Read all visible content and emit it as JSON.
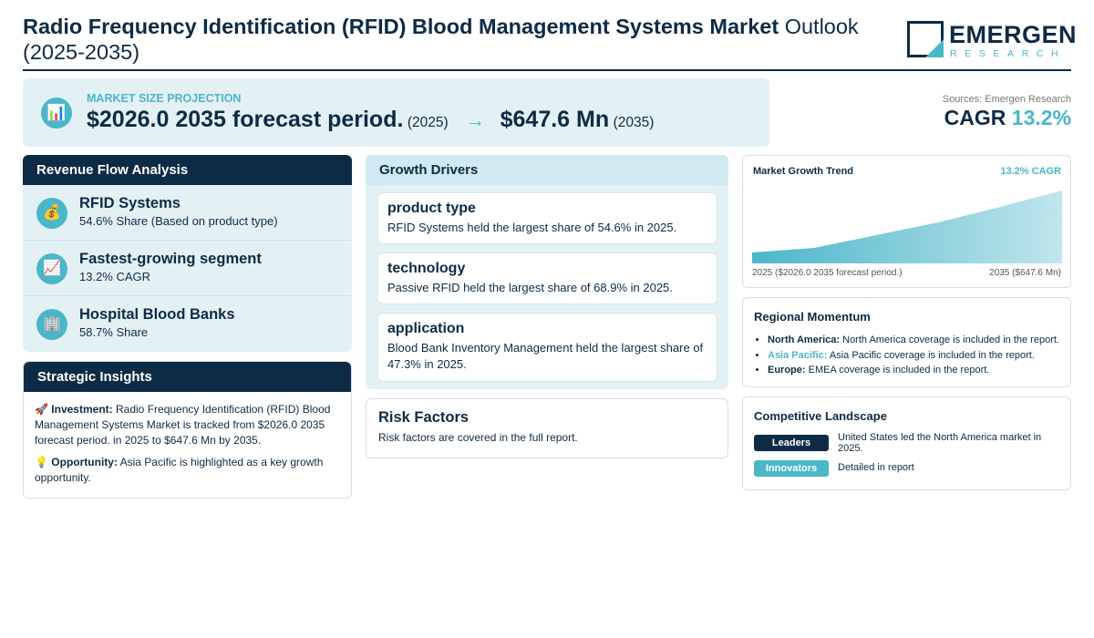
{
  "header": {
    "title_bold": "Radio Frequency Identification (RFID) Blood Management Systems Market",
    "title_rest": "Outlook (2025-2035)",
    "logo_name": "EMERGEN",
    "logo_sub": "RESEARCH"
  },
  "projection": {
    "label": "MARKET SIZE PROJECTION",
    "start_value": "$2026.0 2035 forecast period.",
    "start_year": "(2025)",
    "arrow": "→",
    "end_value": "$647.6 Mn",
    "end_year": "(2035)",
    "icon": "bar-chart-icon"
  },
  "sources": "Sources: Emergen Research",
  "cagr": {
    "label": "CAGR",
    "value": "13.2%"
  },
  "revenue_flow": {
    "title": "Revenue Flow Analysis",
    "items": [
      {
        "icon": "money-bag-icon",
        "glyph": "💰",
        "title": "RFID Systems",
        "subtitle": "54.6% Share (Based on product type)"
      },
      {
        "icon": "trend-up-icon",
        "glyph": "📈",
        "title": "Fastest-growing segment",
        "subtitle": "13.2% CAGR"
      },
      {
        "icon": "building-icon",
        "glyph": "🏢",
        "title": "Hospital Blood Banks",
        "subtitle": "58.7% Share"
      }
    ]
  },
  "strategic": {
    "title": "Strategic Insights",
    "investment_icon": "🚀",
    "investment_label": "Investment:",
    "investment_text": "Radio Frequency Identification (RFID) Blood Management Systems Market is tracked from $2026.0 2035 forecast period. in 2025 to $647.6 Mn by 2035.",
    "opportunity_icon": "💡",
    "opportunity_label": "Opportunity:",
    "opportunity_text": "Asia Pacific is highlighted as a key growth opportunity."
  },
  "drivers": {
    "title": "Growth Drivers",
    "items": [
      {
        "title": "product type",
        "text": "RFID Systems held the largest share of 54.6% in 2025."
      },
      {
        "title": "technology",
        "text": "Passive RFID held the largest share of 68.9% in 2025."
      },
      {
        "title": "application",
        "text": "Blood Bank Inventory Management held the largest share of 47.3% in 2025."
      }
    ]
  },
  "risk": {
    "title": "Risk Factors",
    "text": "Risk factors are covered in the full report."
  },
  "trend": {
    "title": "Market Growth Trend",
    "cagr": "13.2% CAGR",
    "left_label": "2025 ($2026.0 2035 forecast period.)",
    "right_label": "2035 ($647.6 Mn)"
  },
  "regional": {
    "title": "Regional Momentum",
    "items": [
      {
        "region": "North America:",
        "text": "North America coverage is included in the report.",
        "highlight": false
      },
      {
        "region": "Asia Pacific:",
        "text": "Asia Pacific coverage is included in the report.",
        "highlight": true
      },
      {
        "region": "Europe:",
        "text": "EMEA coverage is included in the report.",
        "highlight": false
      }
    ]
  },
  "competitive": {
    "title": "Competitive Landscape",
    "rows": [
      {
        "badge": "Leaders",
        "text": "United States led the North America market in 2025."
      },
      {
        "badge": "Innovators",
        "text": "Detailed in report"
      }
    ]
  },
  "colors": {
    "navy": "#0d2b45",
    "teal": "#4bb6c9",
    "panel": "#e3f1f5"
  }
}
